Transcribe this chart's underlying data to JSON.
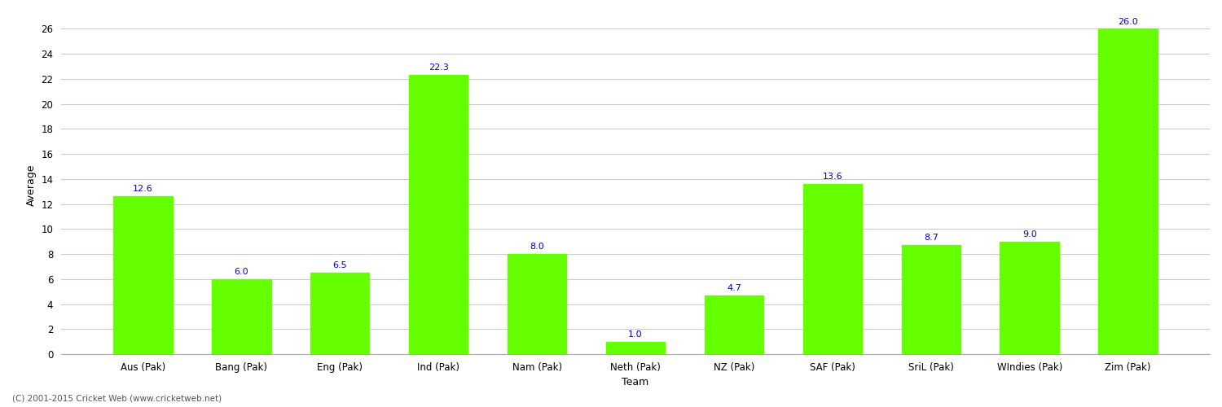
{
  "categories": [
    "Aus (Pak)",
    "Bang (Pak)",
    "Eng (Pak)",
    "Ind (Pak)",
    "Nam (Pak)",
    "Neth (Pak)",
    "NZ (Pak)",
    "SAF (Pak)",
    "SriL (Pak)",
    "WIndies (Pak)",
    "Zim (Pak)"
  ],
  "values": [
    12.6,
    6.0,
    6.5,
    22.3,
    8.0,
    1.0,
    4.7,
    13.6,
    8.7,
    9.0,
    26.0
  ],
  "bar_color": "#66ff00",
  "bar_edge_color": "#66ff00",
  "label_color": "#0000cc",
  "xlabel": "Team",
  "ylabel": "Average",
  "ylim": [
    0,
    27
  ],
  "yticks": [
    0,
    2,
    4,
    6,
    8,
    10,
    12,
    14,
    16,
    18,
    20,
    22,
    24,
    26
  ],
  "background_color": "#ffffff",
  "grid_color": "#cccccc",
  "footer_text": "(C) 2001-2015 Cricket Web (www.cricketweb.net)",
  "axis_label_fontsize": 9,
  "tick_fontsize": 8.5,
  "value_label_fontsize": 8.0
}
